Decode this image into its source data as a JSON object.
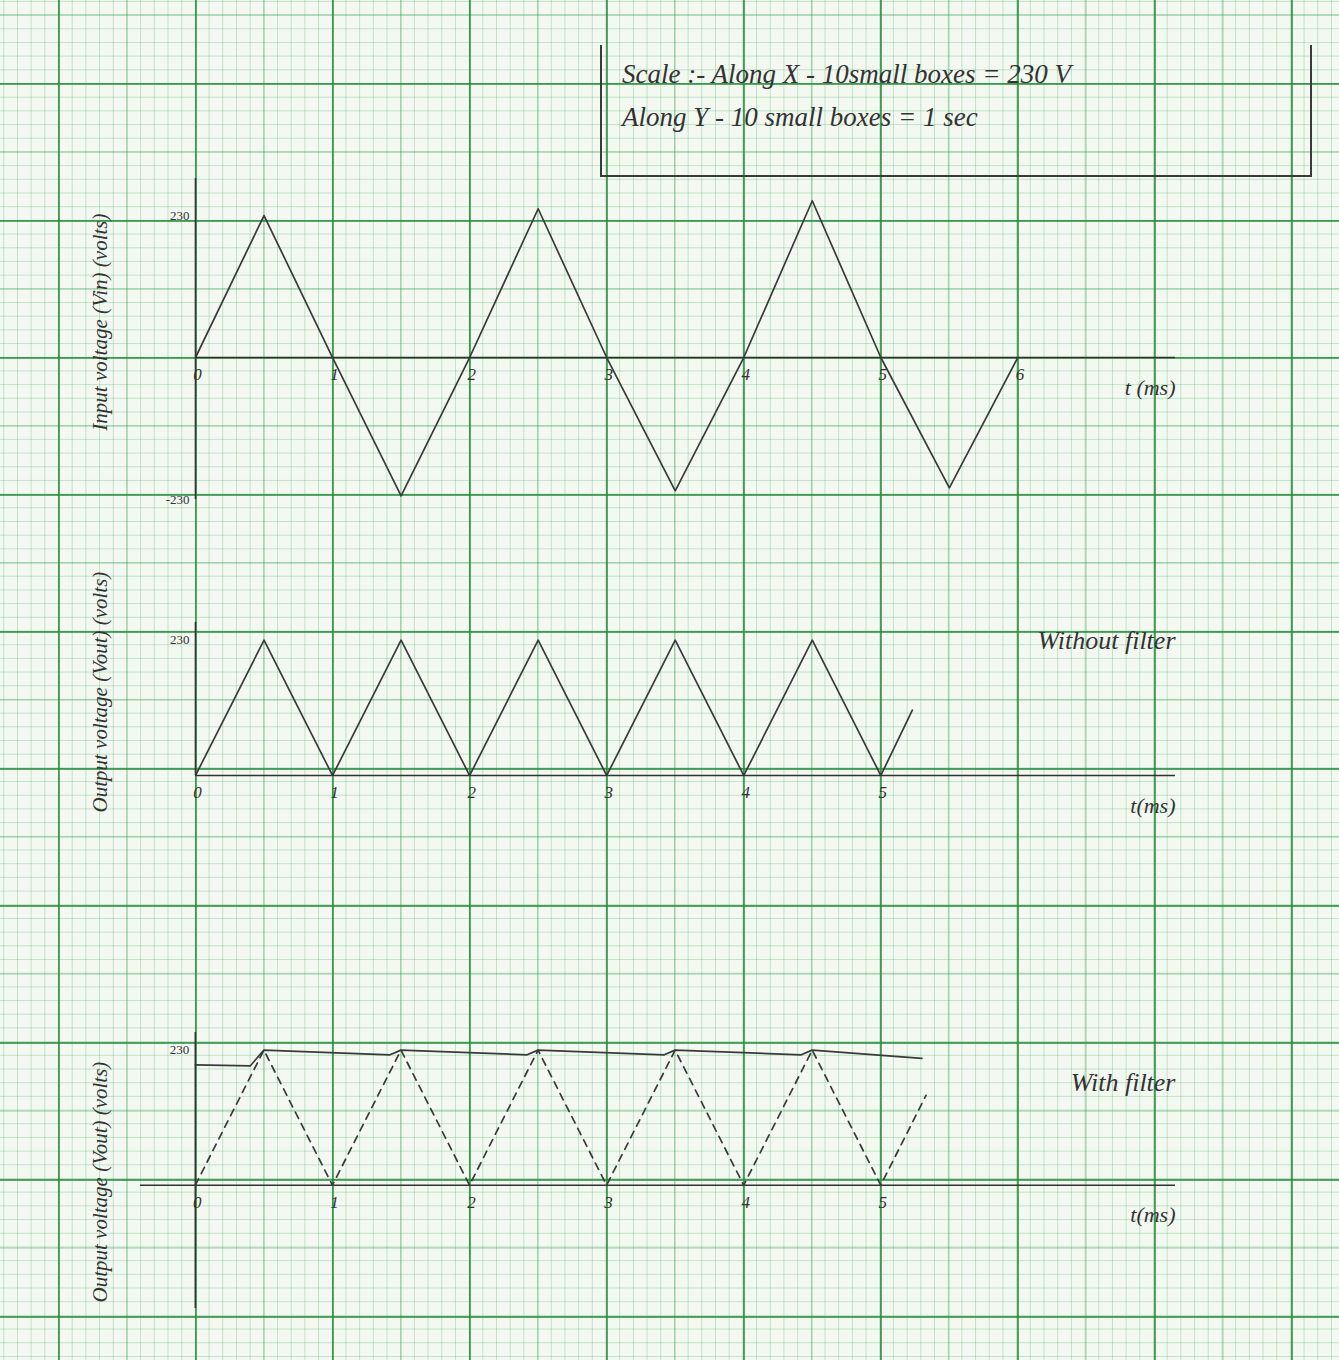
{
  "scale_note": [
    "Scale :- Along X - 10small boxes = 230 V",
    "Along Y - 10 small boxes = 1 sec"
  ],
  "chart_data": [
    {
      "type": "line",
      "xlabel": "t (ms)",
      "ylabel": "Input voltage (Vin) (volts)",
      "xlim": [
        0,
        7.15
      ],
      "ylim": [
        -230,
        290
      ],
      "xticks": [
        0,
        1,
        2,
        3,
        4,
        5,
        6
      ],
      "yticks": [
        -230,
        230
      ],
      "series": [
        {
          "color": "#3a3a3a",
          "line_style": "solid",
          "x": [
            0,
            0.5,
            1,
            1.5,
            2,
            2.5,
            3,
            3.5,
            4,
            4.5,
            5,
            5.5,
            6
          ],
          "values": [
            0,
            230,
            0,
            -224,
            0,
            241,
            0,
            -216,
            0,
            254,
            0,
            -211,
            0
          ]
        }
      ]
    },
    {
      "type": "line",
      "xlabel": "t(ms)",
      "ylabel": "Output voltage (Vout) (volts)",
      "annotation": "Without filter",
      "xlim": [
        0,
        7.15
      ],
      "ylim": [
        0,
        260
      ],
      "xticks": [
        0,
        1,
        2,
        3,
        4,
        5
      ],
      "yticks": [
        230
      ],
      "series": [
        {
          "color": "#3a3a3a",
          "line_style": "solid",
          "x": [
            0,
            0.5,
            1,
            1.5,
            2,
            2.5,
            3,
            3.5,
            4,
            4.5,
            5,
            5.23
          ],
          "values": [
            0,
            230,
            0,
            230,
            0,
            230,
            0,
            230,
            0,
            230,
            0,
            111
          ]
        }
      ]
    },
    {
      "type": "line",
      "xlabel": "t(ms)",
      "ylabel": "Output voltage (Vout) (volts)",
      "annotation": "With filter",
      "xlim": [
        -0.4,
        7.15
      ],
      "ylim": [
        -210,
        260
      ],
      "xticks": [
        0,
        1,
        2,
        3,
        4,
        5
      ],
      "yticks": [
        230
      ],
      "series": [
        {
          "color": "#3a3a3a",
          "line_style": "dashed",
          "x": [
            0,
            0.5,
            1,
            1.5,
            2,
            2.5,
            3,
            3.5,
            4,
            4.5,
            5,
            5.33
          ],
          "values": [
            0,
            230,
            0,
            230,
            0,
            230,
            0,
            230,
            0,
            230,
            0,
            153
          ]
        },
        {
          "color": "#3a3a3a",
          "line_style": "solid",
          "x": [
            0,
            0.4,
            0.5,
            1.42,
            1.5,
            2.42,
            2.5,
            3.42,
            3.5,
            4.42,
            4.5,
            5.3
          ],
          "values": [
            205,
            203,
            230,
            222,
            230,
            222,
            230,
            222,
            230,
            222,
            230,
            216
          ]
        }
      ]
    }
  ]
}
